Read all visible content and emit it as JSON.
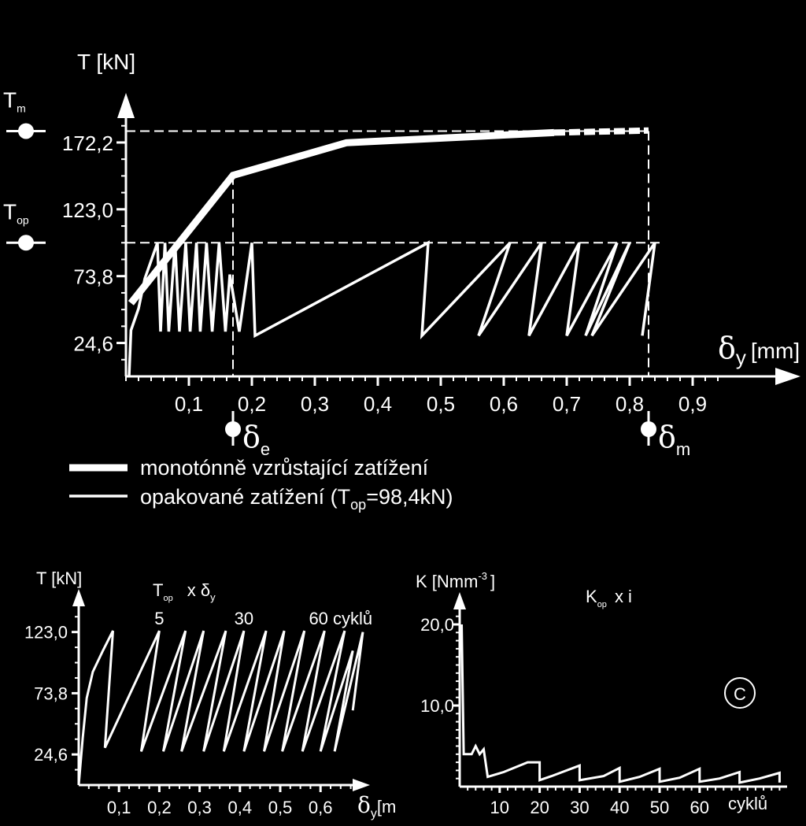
{
  "chart_data": [
    {
      "type": "line",
      "ylabel": "T  [kN]",
      "xlabel_symbol": "δ",
      "xlabel_sub": "y",
      "xlabel_unit": "[mm]",
      "yticks": [
        "172,2",
        "123,0",
        "73,8",
        "24,6"
      ],
      "ytick_values": [
        172.2,
        123.0,
        73.8,
        24.6
      ],
      "xticks": [
        "0,1",
        "0,2",
        "0,3",
        "0,4",
        "0,5",
        "0,6",
        "0,7",
        "0,8",
        "0,9"
      ],
      "xtick_values": [
        0.1,
        0.2,
        0.3,
        0.4,
        0.5,
        0.6,
        0.7,
        0.8,
        0.9
      ],
      "xlim": [
        0,
        0.95
      ],
      "ylim": [
        0,
        205
      ],
      "markers": {
        "Tm": {
          "sym": "T",
          "sub": "m",
          "value": 180.6
        },
        "Top": {
          "sym": "T",
          "sub": "op",
          "value": 98.4
        },
        "de": {
          "sym": "δ",
          "sub": "e",
          "value": 0.17
        },
        "dm": {
          "sym": "δ",
          "sub": "m",
          "value": 0.83
        }
      },
      "series": [
        {
          "name": "monotónně vzrůstající zatížení",
          "points": [
            [
              0.008,
              54
            ],
            [
              0.17,
              148
            ],
            [
              0.35,
              172
            ],
            [
              0.68,
              179.5
            ]
          ],
          "dashed_tail": [
            [
              0.68,
              179.5
            ],
            [
              0.83,
              181
            ]
          ]
        },
        {
          "name": "opakované zatížení (T",
          "name_sub": "op",
          "name_end": "=98,4kN)",
          "points": [
            [
              0.005,
              0
            ],
            [
              0.008,
              34
            ],
            [
              0.02,
              50
            ],
            [
              0.03,
              72
            ],
            [
              0.05,
              98.4
            ],
            [
              0.055,
              33
            ],
            [
              0.062,
              98.4
            ],
            [
              0.068,
              33
            ],
            [
              0.078,
              98.4
            ],
            [
              0.085,
              33
            ],
            [
              0.095,
              98.4
            ],
            [
              0.102,
              33
            ],
            [
              0.112,
              98.4
            ],
            [
              0.118,
              33
            ],
            [
              0.128,
              98.4
            ],
            [
              0.137,
              33
            ],
            [
              0.148,
              98.4
            ],
            [
              0.158,
              33
            ],
            [
              0.165,
              75
            ],
            [
              0.18,
              33
            ],
            [
              0.2,
              98.4
            ],
            [
              0.205,
              30
            ],
            [
              0.48,
              98.4
            ],
            [
              0.47,
              30
            ],
            [
              0.61,
              98.4
            ],
            [
              0.56,
              30
            ],
            [
              0.66,
              98.4
            ],
            [
              0.64,
              30
            ],
            [
              0.72,
              98.4
            ],
            [
              0.7,
              30
            ],
            [
              0.78,
              98.4
            ],
            [
              0.73,
              30
            ],
            [
              0.8,
              98.4
            ],
            [
              0.74,
              30
            ],
            [
              0.84,
              98.4
            ],
            [
              0.82,
              30
            ]
          ]
        }
      ]
    },
    {
      "type": "line",
      "ylabel": "T [kN]",
      "title_sym": "T",
      "title_sub": "op",
      "title_mid": "x δ",
      "title_sub2": "y",
      "xlabel_symbol": "δ",
      "xlabel_sub": "y",
      "xlabel_unit": "[m",
      "yticks": [
        "123,0",
        "73,8",
        "24,6"
      ],
      "ytick_values": [
        123.0,
        73.8,
        24.6
      ],
      "xticks": [
        "0,1",
        "0,2",
        "0,3",
        "0,4",
        "0,5",
        "0,6"
      ],
      "xtick_values": [
        0.1,
        0.2,
        0.3,
        0.4,
        0.5,
        0.6
      ],
      "xlim": [
        0,
        0.72
      ],
      "ylim": [
        0,
        160
      ],
      "annotations": [
        "5",
        "30",
        "60 cyklů"
      ],
      "annotation_x": [
        0.2,
        0.41,
        0.65
      ],
      "points": [
        [
          0.0,
          0
        ],
        [
          0.01,
          38
        ],
        [
          0.02,
          70
        ],
        [
          0.035,
          91
        ],
        [
          0.06,
          108
        ],
        [
          0.085,
          124
        ],
        [
          0.065,
          30
        ],
        [
          0.2,
          124
        ],
        [
          0.155,
          27
        ],
        [
          0.265,
          124
        ],
        [
          0.21,
          27
        ],
        [
          0.31,
          124
        ],
        [
          0.255,
          27
        ],
        [
          0.365,
          124
        ],
        [
          0.31,
          27
        ],
        [
          0.41,
          124
        ],
        [
          0.36,
          27
        ],
        [
          0.465,
          124
        ],
        [
          0.41,
          27
        ],
        [
          0.51,
          124
        ],
        [
          0.46,
          27
        ],
        [
          0.56,
          124
        ],
        [
          0.505,
          27
        ],
        [
          0.61,
          124
        ],
        [
          0.555,
          27
        ],
        [
          0.66,
          124
        ],
        [
          0.6,
          27
        ],
        [
          0.68,
          108
        ],
        [
          0.635,
          27
        ],
        [
          0.705,
          123
        ],
        [
          0.68,
          60
        ]
      ]
    },
    {
      "type": "line",
      "ylabel": "K [Nmm",
      "ylabel_sup": "-3",
      "ylabel_end": "]",
      "title_sym": "K",
      "title_sub": "op",
      "title_mid": "x i",
      "xlabel": "cyklů",
      "yticks": [
        "20,0",
        "10,0"
      ],
      "ytick_values": [
        20.0,
        10.0
      ],
      "xticks": [
        "10",
        "20",
        "30",
        "40",
        "50",
        "60"
      ],
      "xtick_values": [
        10,
        20,
        30,
        40,
        50,
        60
      ],
      "xlim": [
        0,
        81
      ],
      "ylim": [
        0,
        27
      ],
      "badge": "C",
      "points": [
        [
          0.5,
          20
        ],
        [
          1,
          4
        ],
        [
          3,
          4
        ],
        [
          4,
          5
        ],
        [
          5,
          4
        ],
        [
          6,
          4.6
        ],
        [
          7,
          1.2
        ],
        [
          11,
          1.8
        ],
        [
          17,
          3
        ],
        [
          20,
          3
        ],
        [
          20,
          0.8
        ],
        [
          23,
          1.3
        ],
        [
          30,
          2.6
        ],
        [
          30,
          0.8
        ],
        [
          36,
          1.3
        ],
        [
          40,
          2.3
        ],
        [
          40,
          0.6
        ],
        [
          45,
          1.2
        ],
        [
          50,
          2.2
        ],
        [
          50,
          0.6
        ],
        [
          55,
          1.1
        ],
        [
          60,
          2.2
        ],
        [
          60,
          0.6
        ],
        [
          65,
          1.0
        ],
        [
          70,
          1.8
        ],
        [
          70,
          0.5
        ],
        [
          75,
          1.0
        ],
        [
          80,
          1.7
        ],
        [
          80,
          0.5
        ]
      ]
    }
  ]
}
